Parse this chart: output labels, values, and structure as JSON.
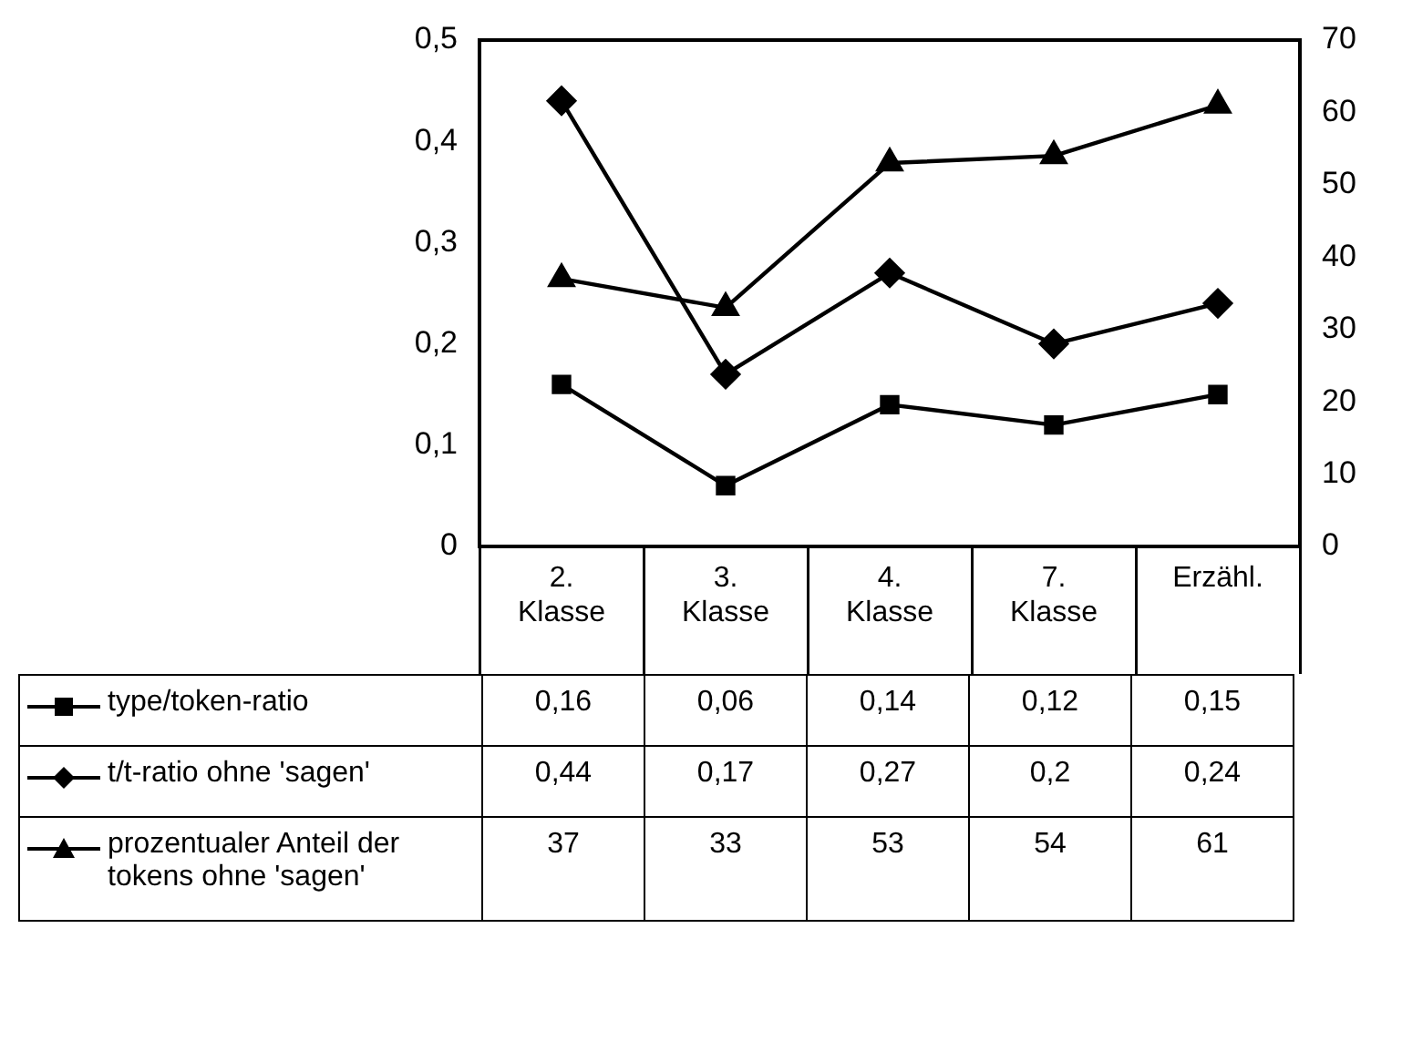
{
  "chart_data": {
    "type": "line",
    "categories": [
      "2. Klasse",
      "3. Klasse",
      "4. Klasse",
      "7. Klasse",
      "Erzähl."
    ],
    "series": [
      {
        "name": "type/token-ratio",
        "color": "#000000",
        "marker": "square",
        "values": [
          0.16,
          0.06,
          0.14,
          0.12,
          0.15
        ],
        "value_labels": [
          "0,16",
          "0,06",
          "0,14",
          "0,12",
          "0,15"
        ]
      },
      {
        "name": "t/t-ratio ohne 'sagen'",
        "color": "#000000",
        "marker": "diamond",
        "values": [
          0.44,
          0.17,
          0.27,
          0.2,
          0.24
        ],
        "value_labels": [
          "0,44",
          "0,17",
          "0,27",
          "0,2",
          "0,24"
        ]
      },
      {
        "name": "prozentualer Anteil der tokens ohne 'sagen'",
        "color": "#000000",
        "marker": "triangle",
        "axis": "y2",
        "values": [
          37,
          33,
          53,
          54,
          61
        ],
        "value_labels": [
          "37",
          "33",
          "53",
          "54",
          "61"
        ]
      }
    ],
    "ylim": [
      0,
      0.5
    ],
    "yticks": [
      0,
      {
        "value": 0.1,
        "label": "0,1"
      },
      {
        "value": 0.2,
        "label": "0,2"
      },
      {
        "value": 0.3,
        "label": "0,3"
      },
      {
        "value": 0.4,
        "label": "0,4"
      },
      {
        "value": 0.5,
        "label": "0,5"
      }
    ],
    "y2lim": [
      0,
      70
    ],
    "y2ticks": [
      0,
      10,
      20,
      30,
      40,
      50,
      60,
      70
    ],
    "legend": "bottom"
  }
}
